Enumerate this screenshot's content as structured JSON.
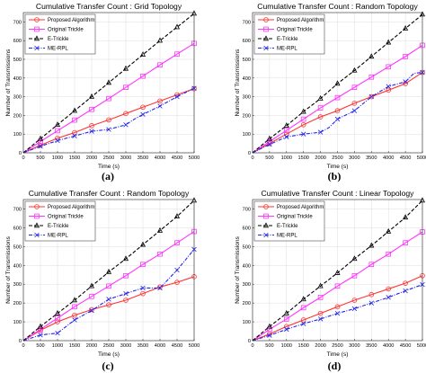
{
  "chart_data": [
    {
      "type": "line",
      "title": "Cumulative Transfer Count : Grid Topology",
      "xlabel": "Time (s)",
      "ylabel": "Number of Transmissions",
      "panel_label": "(a)",
      "xlim": [
        0,
        5000
      ],
      "ylim": [
        0,
        750
      ],
      "xticks": [
        0,
        500,
        1000,
        1500,
        2000,
        2500,
        3000,
        3500,
        4000,
        4500,
        5000
      ],
      "yticks": [
        0,
        100,
        200,
        300,
        400,
        500,
        600,
        700
      ],
      "grid": true,
      "legend_position": "top-left",
      "series": [
        {
          "name": "Proposed Algorithm",
          "color": "#ff3333",
          "marker": "circle",
          "dash": "solid",
          "x": [
            0,
            500,
            1000,
            1500,
            2000,
            2500,
            3000,
            3500,
            4000,
            4500,
            5000
          ],
          "y": [
            0,
            40,
            78,
            108,
            145,
            176,
            210,
            244,
            277,
            310,
            343
          ]
        },
        {
          "name": "Original Trickle",
          "color": "#ff33ff",
          "marker": "square",
          "dash": "solid",
          "x": [
            0,
            500,
            1000,
            1500,
            2000,
            2500,
            3000,
            3500,
            4000,
            4500,
            5000
          ],
          "y": [
            0,
            60,
            118,
            175,
            232,
            290,
            350,
            410,
            470,
            528,
            585
          ]
        },
        {
          "name": "E-Trickle",
          "color": "#000000",
          "marker": "triangle",
          "dash": "dashed",
          "x": [
            0,
            500,
            1000,
            1500,
            2000,
            2500,
            3000,
            3500,
            4000,
            4500,
            5000
          ],
          "y": [
            0,
            75,
            150,
            225,
            300,
            375,
            450,
            525,
            600,
            672,
            745
          ]
        },
        {
          "name": "ME-RPL",
          "color": "#2222ee",
          "marker": "x",
          "dash": "dashdot",
          "x": [
            0,
            500,
            1000,
            1500,
            2000,
            2500,
            3000,
            3250,
            3500,
            4000,
            4500,
            5000
          ],
          "y": [
            0,
            35,
            65,
            90,
            115,
            125,
            150,
            180,
            205,
            250,
            300,
            345
          ]
        }
      ]
    },
    {
      "type": "line",
      "title": "Cumulative Transfer Count : Random Topology",
      "xlabel": "Time (s)",
      "ylabel": "Number of Transmissions",
      "panel_label": "(b)",
      "xlim": [
        0,
        5000
      ],
      "ylim": [
        0,
        750
      ],
      "xticks": [
        0,
        500,
        1000,
        1500,
        2000,
        2500,
        3000,
        3500,
        4000,
        4500,
        5000
      ],
      "yticks": [
        0,
        100,
        200,
        300,
        400,
        500,
        600,
        700
      ],
      "grid": true,
      "legend_position": "top-left",
      "series": [
        {
          "name": "Proposed Algorithm",
          "color": "#ff3333",
          "marker": "circle",
          "dash": "solid",
          "x": [
            0,
            500,
            1000,
            1500,
            2000,
            2500,
            3000,
            3500,
            4000,
            4500,
            5000
          ],
          "y": [
            0,
            50,
            100,
            150,
            192,
            225,
            265,
            300,
            335,
            370,
            430
          ]
        },
        {
          "name": "Original Trickle",
          "color": "#ff33ff",
          "marker": "square",
          "dash": "solid",
          "x": [
            0,
            500,
            1000,
            1500,
            2000,
            2500,
            3000,
            3500,
            4000,
            4500,
            5000
          ],
          "y": [
            0,
            60,
            120,
            180,
            240,
            295,
            350,
            405,
            460,
            515,
            575
          ]
        },
        {
          "name": "E-Trickle",
          "color": "#000000",
          "marker": "triangle",
          "dash": "dashed",
          "x": [
            0,
            500,
            1000,
            1500,
            2000,
            2500,
            3000,
            3500,
            4000,
            4500,
            5000
          ],
          "y": [
            0,
            75,
            145,
            220,
            290,
            370,
            440,
            515,
            590,
            665,
            740
          ]
        },
        {
          "name": "ME-RPL",
          "color": "#2222ee",
          "marker": "x",
          "dash": "dashdot",
          "x": [
            0,
            500,
            1000,
            1500,
            2000,
            2250,
            2500,
            3000,
            3500,
            4000,
            4500,
            4750,
            5000
          ],
          "y": [
            0,
            45,
            85,
            100,
            110,
            135,
            180,
            225,
            300,
            355,
            380,
            425,
            430
          ]
        }
      ]
    },
    {
      "type": "line",
      "title": "Cumulative Transfer Count : Random Topology",
      "xlabel": "Time (s)",
      "ylabel": "Number of Transmissions",
      "panel_label": "(c)",
      "xlim": [
        0,
        5000
      ],
      "ylim": [
        0,
        750
      ],
      "xticks": [
        0,
        500,
        1000,
        1500,
        2000,
        2500,
        3000,
        3500,
        4000,
        4500,
        5000
      ],
      "yticks": [
        0,
        100,
        200,
        300,
        400,
        500,
        600,
        700
      ],
      "grid": true,
      "legend_position": "top-left",
      "series": [
        {
          "name": "Proposed Algorithm",
          "color": "#ff3333",
          "marker": "circle",
          "dash": "solid",
          "x": [
            0,
            500,
            1000,
            1500,
            2000,
            2500,
            3000,
            3500,
            4000,
            4500,
            5000
          ],
          "y": [
            0,
            55,
            100,
            135,
            165,
            190,
            215,
            250,
            285,
            310,
            340
          ]
        },
        {
          "name": "Original Trickle",
          "color": "#ff33ff",
          "marker": "square",
          "dash": "solid",
          "x": [
            0,
            500,
            1000,
            1500,
            2000,
            2500,
            3000,
            3500,
            4000,
            4500,
            5000
          ],
          "y": [
            0,
            60,
            120,
            180,
            235,
            290,
            345,
            405,
            460,
            520,
            580
          ]
        },
        {
          "name": "E-Trickle",
          "color": "#000000",
          "marker": "triangle",
          "dash": "dashed",
          "x": [
            0,
            500,
            1000,
            1500,
            2000,
            2500,
            3000,
            3500,
            4000,
            4500,
            5000
          ],
          "y": [
            0,
            75,
            145,
            215,
            290,
            365,
            435,
            510,
            585,
            660,
            745
          ]
        },
        {
          "name": "ME-RPL",
          "color": "#2222ee",
          "marker": "x",
          "dash": "dashdot",
          "x": [
            0,
            500,
            1000,
            1500,
            2000,
            2500,
            3000,
            3500,
            4000,
            4500,
            5000
          ],
          "y": [
            0,
            30,
            40,
            110,
            160,
            220,
            250,
            280,
            280,
            375,
            485
          ]
        }
      ]
    },
    {
      "type": "line",
      "title": "Cumulative Transfer Count : Linear Topology",
      "xlabel": "Time (s)",
      "ylabel": "Number of Transmissions",
      "panel_label": "(d)",
      "xlim": [
        0,
        5000
      ],
      "ylim": [
        0,
        750
      ],
      "xticks": [
        0,
        500,
        1000,
        1500,
        2000,
        2500,
        3000,
        3500,
        4000,
        4500,
        5000
      ],
      "yticks": [
        0,
        100,
        200,
        300,
        400,
        500,
        600,
        700
      ],
      "grid": true,
      "legend_position": "top-left",
      "series": [
        {
          "name": "Proposed Algorithm",
          "color": "#ff3333",
          "marker": "circle",
          "dash": "solid",
          "x": [
            0,
            500,
            1000,
            1500,
            2000,
            2500,
            3000,
            3500,
            4000,
            4500,
            5000
          ],
          "y": [
            0,
            35,
            75,
            110,
            145,
            180,
            215,
            245,
            275,
            305,
            345
          ]
        },
        {
          "name": "Original Trickle",
          "color": "#ff33ff",
          "marker": "square",
          "dash": "solid",
          "x": [
            0,
            500,
            1000,
            1500,
            2000,
            2500,
            3000,
            3500,
            4000,
            4500,
            5000
          ],
          "y": [
            0,
            60,
            115,
            175,
            230,
            290,
            345,
            405,
            460,
            520,
            578
          ]
        },
        {
          "name": "E-Trickle",
          "color": "#000000",
          "marker": "triangle",
          "dash": "dashed",
          "x": [
            0,
            500,
            1000,
            1500,
            2000,
            2500,
            3000,
            3500,
            4000,
            4500,
            5000
          ],
          "y": [
            0,
            75,
            145,
            220,
            290,
            360,
            435,
            505,
            580,
            655,
            745
          ]
        },
        {
          "name": "ME-RPL",
          "color": "#2222ee",
          "marker": "x",
          "dash": "dashdot",
          "x": [
            0,
            500,
            1000,
            1500,
            2000,
            2500,
            3000,
            3500,
            4000,
            4500,
            5000
          ],
          "y": [
            0,
            28,
            60,
            90,
            115,
            145,
            170,
            200,
            230,
            265,
            298
          ]
        }
      ]
    }
  ]
}
